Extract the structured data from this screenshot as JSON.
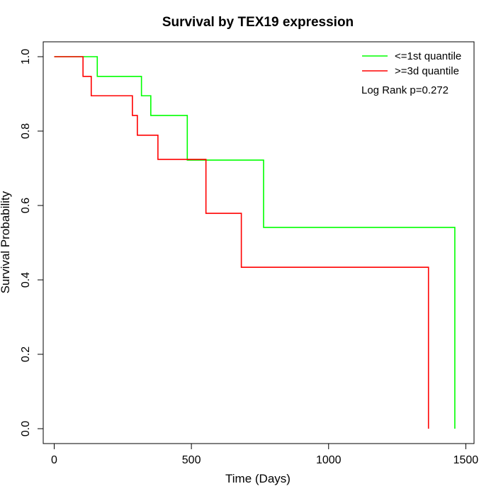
{
  "chart_data": {
    "type": "line",
    "title": "Survival by TEX19 expression",
    "xlabel": "Time (Days)",
    "ylabel": "Survival Probability",
    "xlim": [
      -40,
      1530
    ],
    "ylim": [
      -0.04,
      1.04
    ],
    "xticks": [
      0,
      500,
      1000,
      1500
    ],
    "yticks": [
      0.0,
      0.2,
      0.4,
      0.6,
      0.8,
      1.0
    ],
    "xtick_labels": [
      "0",
      "500",
      "1000",
      "1500"
    ],
    "ytick_labels": [
      "0.0",
      "0.2",
      "0.4",
      "0.6",
      "0.8",
      "1.0"
    ],
    "grid": false,
    "legend_position": "top-right",
    "annotation": "Log Rank p=0.272",
    "series": [
      {
        "name": "<=1st quantile",
        "color": "#00ff00",
        "step_points": [
          [
            0,
            1.0
          ],
          [
            157,
            1.0
          ],
          [
            157,
            0.947
          ],
          [
            318,
            0.947
          ],
          [
            318,
            0.895
          ],
          [
            352,
            0.895
          ],
          [
            352,
            0.842
          ],
          [
            485,
            0.842
          ],
          [
            485,
            0.722
          ],
          [
            763,
            0.722
          ],
          [
            763,
            0.541
          ],
          [
            1460,
            0.541
          ],
          [
            1460,
            0.0
          ]
        ]
      },
      {
        "name": ">=3d quantile",
        "color": "#ff0000",
        "step_points": [
          [
            0,
            1.0
          ],
          [
            105,
            1.0
          ],
          [
            105,
            0.947
          ],
          [
            135,
            0.947
          ],
          [
            135,
            0.895
          ],
          [
            285,
            0.895
          ],
          [
            285,
            0.842
          ],
          [
            303,
            0.842
          ],
          [
            303,
            0.789
          ],
          [
            378,
            0.789
          ],
          [
            378,
            0.724
          ],
          [
            553,
            0.724
          ],
          [
            553,
            0.579
          ],
          [
            682,
            0.579
          ],
          [
            682,
            0.434
          ],
          [
            1364,
            0.434
          ],
          [
            1364,
            0.0
          ]
        ]
      }
    ]
  }
}
